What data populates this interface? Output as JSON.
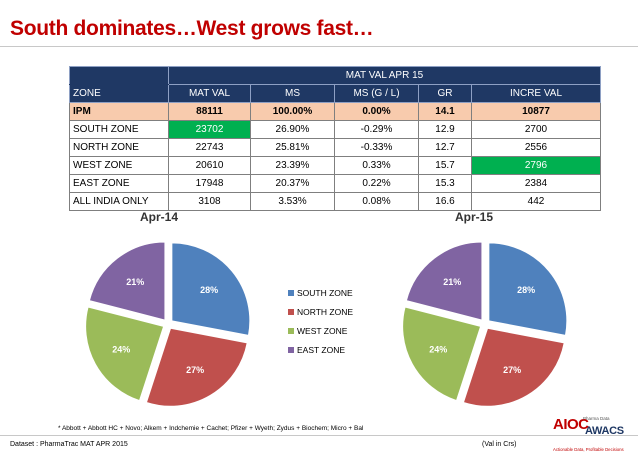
{
  "title": "South dominates…West grows fast…",
  "table": {
    "group_header": "MAT VAL APR 15",
    "columns": [
      "ZONE",
      "MAT VAL",
      "MS",
      "MS (G / L)",
      "GR",
      "INCRE VAL"
    ],
    "rows": [
      [
        "IPM",
        "88111",
        "100.00%",
        "0.00%",
        "14.1",
        "10877"
      ],
      [
        "SOUTH ZONE",
        "23702",
        "26.90%",
        "-0.29%",
        "12.9",
        "2700"
      ],
      [
        "NORTH ZONE",
        "22743",
        "25.81%",
        "-0.33%",
        "12.7",
        "2556"
      ],
      [
        "WEST ZONE",
        "20610",
        "23.39%",
        "0.33%",
        "15.7",
        "2796"
      ],
      [
        "EAST ZONE",
        "17948",
        "20.37%",
        "0.22%",
        "15.3",
        "2384"
      ],
      [
        "ALL INDIA ONLY",
        "3108",
        "3.53%",
        "0.08%",
        "16.6",
        "442"
      ]
    ],
    "highlight_color": "#00b050",
    "header_color": "#1f3864",
    "ipm_row_color": "#f8cbad"
  },
  "legend": [
    "SOUTH ZONE",
    "NORTH ZONE",
    "WEST ZONE",
    "EAST ZONE"
  ],
  "colors": [
    "#4f81bd",
    "#c0504d",
    "#9bbb59",
    "#8064a2"
  ],
  "chart_data": [
    {
      "type": "pie",
      "title": "Apr-14",
      "categories": [
        "SOUTH ZONE",
        "NORTH ZONE",
        "WEST ZONE",
        "EAST ZONE"
      ],
      "values": [
        28,
        27,
        24,
        21
      ],
      "labels": [
        "28%",
        "27%",
        "24%",
        "21%"
      ]
    },
    {
      "type": "pie",
      "title": "Apr-15",
      "categories": [
        "SOUTH ZONE",
        "NORTH ZONE",
        "WEST ZONE",
        "EAST ZONE"
      ],
      "values": [
        28,
        27,
        24,
        21
      ],
      "labels": [
        "28%",
        "27%",
        "24%",
        "21%"
      ]
    }
  ],
  "footnote": "* Abbott + Abbott HC + Novo;  Alkem + Indchemie + Cachet; Pfizer + Wyeth;  Zydus + Biochem; Micro + Bal",
  "dataset": "Dataset : PharmaTrac MAT APR 2015",
  "units": "(Val in Crs)",
  "logo": {
    "aioc": "AIOC",
    "sub": "Pharma Data",
    "awacs": "AWACS",
    "tagline": "Actionable Data, Profitable Decisions"
  }
}
